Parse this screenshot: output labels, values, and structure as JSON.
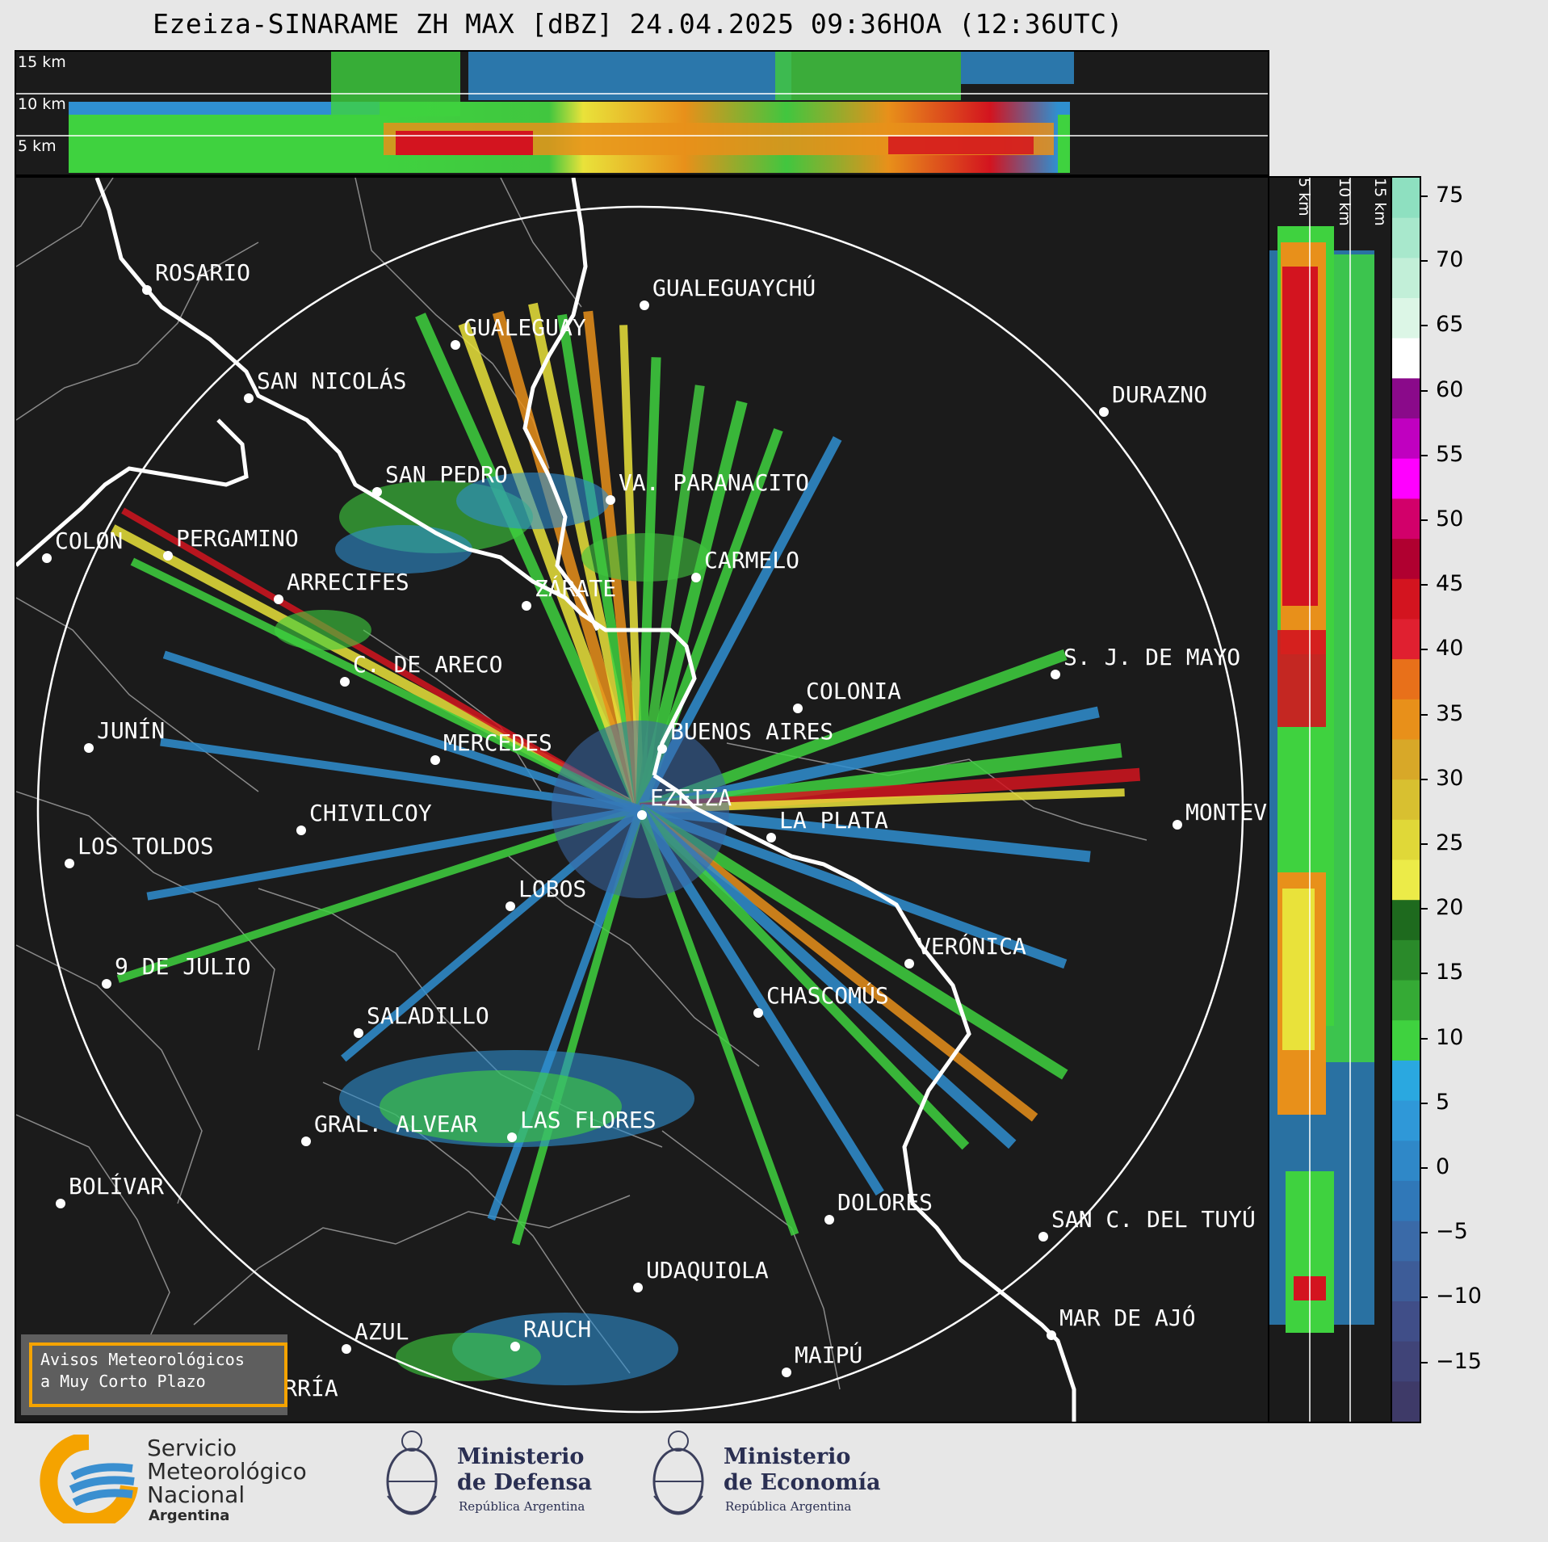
{
  "title": "Ezeiza-SINARAME ZH MAX [dBZ] 24.04.2025 09:36HOA (12:36UTC)",
  "height_labels": {
    "h15": "15 km",
    "h10": "10 km",
    "h5": "5 km"
  },
  "colorbar": {
    "ticks": [
      "75",
      "70",
      "65",
      "60",
      "55",
      "50",
      "45",
      "40",
      "35",
      "30",
      "25",
      "20",
      "15",
      "10",
      "5",
      "0",
      "−5",
      "−10",
      "−15"
    ]
  },
  "cities": [
    {
      "name": "ROSARIO"
    },
    {
      "name": "GUALEGUAYCHÚ"
    },
    {
      "name": "GUALEGUAY"
    },
    {
      "name": "SAN NICOLÁS"
    },
    {
      "name": "DURAZNO"
    },
    {
      "name": "SAN PEDRO"
    },
    {
      "name": "VA. PARANACITO"
    },
    {
      "name": "COLON"
    },
    {
      "name": "PERGAMINO"
    },
    {
      "name": "CARMELO"
    },
    {
      "name": "ARRECIFES"
    },
    {
      "name": "ZÁRATE"
    },
    {
      "name": "S. J. DE MAYO"
    },
    {
      "name": "C. DE ARECO"
    },
    {
      "name": "COLONIA"
    },
    {
      "name": "BUENOS AIRES"
    },
    {
      "name": "JUNÍN"
    },
    {
      "name": "MERCEDES"
    },
    {
      "name": "EZEIZA"
    },
    {
      "name": "MONTEVIDEO"
    },
    {
      "name": "CHIVILCOY"
    },
    {
      "name": "LA PLATA"
    },
    {
      "name": "LOS TOLDOS"
    },
    {
      "name": "LOBOS"
    },
    {
      "name": "VERÓNICA"
    },
    {
      "name": "9 DE JULIO"
    },
    {
      "name": "CHASCOMÚS"
    },
    {
      "name": "SALADILLO"
    },
    {
      "name": "GRAL. ALVEAR"
    },
    {
      "name": "LAS FLORES"
    },
    {
      "name": "BOLÍVAR"
    },
    {
      "name": "DOLORES"
    },
    {
      "name": "SAN C. DEL TUYÚ"
    },
    {
      "name": "UDAQUIOLA"
    },
    {
      "name": "MAR DE AJÓ"
    },
    {
      "name": "AZUL"
    },
    {
      "name": "RAUCH"
    },
    {
      "name": "OLAVARRÍA"
    },
    {
      "name": "MAIPÚ"
    }
  ],
  "avisos": {
    "line1": "Avisos Meteorológicos",
    "line2": "a Muy Corto Plazo"
  },
  "logos": {
    "smn": {
      "l1": "Servicio",
      "l2": "Meteorológico",
      "l3": "Nacional",
      "l4": "Argentina"
    },
    "defensa": {
      "l1": "Ministerio",
      "l2": "de Defensa",
      "l3": "República Argentina"
    },
    "economia": {
      "l1": "Ministerio",
      "l2": "de Economía",
      "l3": "República Argentina"
    }
  },
  "colors": {
    "background": "#1b1b1b",
    "green": "#3fd23f",
    "blue": "#2f8fd0",
    "yellow": "#e9e23a",
    "orange": "#e8901a",
    "red": "#d3141f",
    "coast": "#ffffff",
    "border": "#8a8a8a"
  }
}
